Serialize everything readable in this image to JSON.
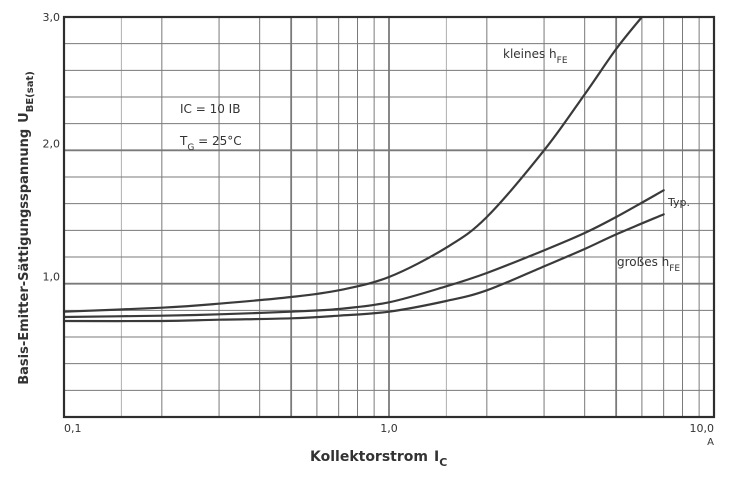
{
  "chart_data": {
    "type": "line",
    "title": "",
    "xlabel": "Kollektorstrom",
    "xlabel_symbol": "I",
    "xlabel_sub": "C",
    "ylabel": "Basis-Emitter-Sättigungsspannung",
    "ylabel_symbol": "U",
    "ylabel_sub": "BE(sat)",
    "x_scale": "log",
    "xlim": [
      0.1,
      10
    ],
    "ylim": [
      0,
      3
    ],
    "x_unit": "A",
    "grid": true,
    "x_ticks": [
      {
        "value": 0.1,
        "label": "0,1"
      },
      {
        "value": 1,
        "label": "1,0"
      },
      {
        "value": 10,
        "label": "10,0"
      }
    ],
    "y_ticks": [
      {
        "value": 1,
        "label": "1,0"
      },
      {
        "value": 2,
        "label": "2,0"
      },
      {
        "value": 3,
        "label": "3,0"
      }
    ],
    "conditions": [
      {
        "text": "IC = 10 IB"
      },
      {
        "text": "T",
        "sub": "G",
        "rest": " = 25°C"
      }
    ],
    "series": [
      {
        "name": "kleines hFE",
        "label_main": "kleines h",
        "label_sub": "FE",
        "x": [
          0.1,
          0.2,
          0.3,
          0.5,
          0.7,
          1.0,
          1.5,
          2.0,
          3.0,
          4.0,
          5.0,
          6.0
        ],
        "y": [
          0.79,
          0.82,
          0.85,
          0.9,
          0.95,
          1.05,
          1.27,
          1.5,
          2.0,
          2.42,
          2.76,
          3.0
        ]
      },
      {
        "name": "Typ.",
        "label_main": "Typ.",
        "label_sub": "",
        "x": [
          0.1,
          0.2,
          0.3,
          0.5,
          0.7,
          1.0,
          1.5,
          2.0,
          3.0,
          4.0,
          5.0,
          7.0
        ],
        "y": [
          0.75,
          0.76,
          0.77,
          0.79,
          0.81,
          0.86,
          0.98,
          1.08,
          1.25,
          1.38,
          1.5,
          1.7
        ]
      },
      {
        "name": "großes hFE",
        "label_main": "großes h",
        "label_sub": "FE",
        "x": [
          0.1,
          0.2,
          0.3,
          0.5,
          0.7,
          1.0,
          1.5,
          2.0,
          3.0,
          4.0,
          5.0,
          7.0
        ],
        "y": [
          0.72,
          0.72,
          0.73,
          0.74,
          0.76,
          0.79,
          0.87,
          0.95,
          1.13,
          1.26,
          1.37,
          1.52
        ]
      }
    ]
  },
  "colors": {
    "axis": "#2e2e2e",
    "grid": "#7a7a7a",
    "curve": "#3a3a3a",
    "text": "#333333"
  }
}
